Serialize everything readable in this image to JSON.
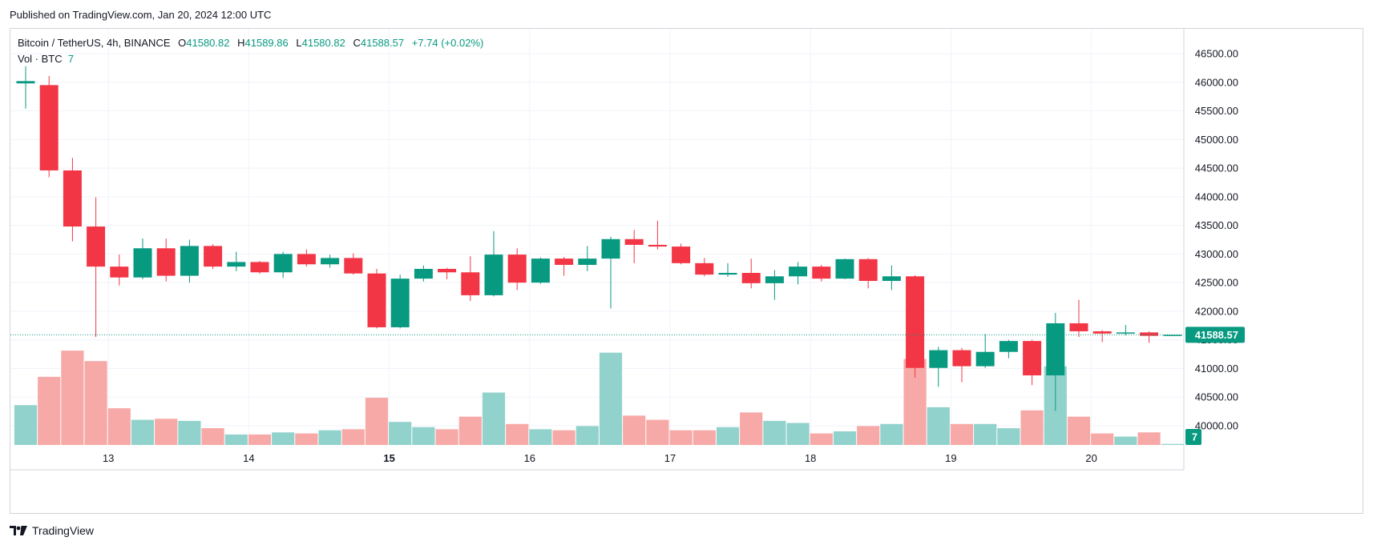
{
  "header": {
    "published": "Published on TradingView.com, Jan 20, 2024 12:00 UTC"
  },
  "legend": {
    "symbol": "Bitcoin / TetherUS, 4h, BINANCE",
    "o_label": "O",
    "o_value": "41580.82",
    "h_label": "H",
    "h_value": "41589.86",
    "l_label": "L",
    "l_value": "41580.82",
    "c_label": "C",
    "c_value": "41588.57",
    "change": "+7.74 (+0.02%)"
  },
  "volume_legend": {
    "label": "Vol · BTC",
    "value": "7"
  },
  "footer": {
    "brand": "TradingView"
  },
  "colors": {
    "up": "#089981",
    "down": "#f23645",
    "up_volume": "#92d2cc",
    "down_volume": "#f7a9a7",
    "grid": "#f0f3fa",
    "axis_text": "#131722"
  },
  "chart_data": {
    "type": "candlestick",
    "interval": "4h",
    "y_axis": {
      "range": [
        39800,
        46750
      ],
      "ticks": [
        "46500.00",
        "46000.00",
        "45500.00",
        "45000.00",
        "44500.00",
        "44000.00",
        "43500.00",
        "43000.00",
        "42500.00",
        "42000.00",
        "41500.00",
        "41000.00",
        "40500.00",
        "40000.00"
      ],
      "last_price_label": "41588.57",
      "volume_label": "7"
    },
    "x_axis": {
      "ticks": [
        "13",
        "14",
        "15",
        "16",
        "17",
        "18",
        "19",
        "20"
      ],
      "bold_ticks": [
        "15"
      ]
    },
    "candles": [
      {
        "o": 45980,
        "h": 46280,
        "l": 45540,
        "c": 46020,
        "v": 0.38
      },
      {
        "o": 45950,
        "h": 46110,
        "l": 44340,
        "c": 44460,
        "v": 0.65
      },
      {
        "o": 44460,
        "h": 44680,
        "l": 43220,
        "c": 43480,
        "v": 0.9
      },
      {
        "o": 43480,
        "h": 43990,
        "l": 41550,
        "c": 42780,
        "v": 0.8
      },
      {
        "o": 42780,
        "h": 42990,
        "l": 42450,
        "c": 42590,
        "v": 0.35
      },
      {
        "o": 42590,
        "h": 43270,
        "l": 42560,
        "c": 43100,
        "v": 0.24
      },
      {
        "o": 43100,
        "h": 43270,
        "l": 42520,
        "c": 42620,
        "v": 0.25
      },
      {
        "o": 42620,
        "h": 43250,
        "l": 42500,
        "c": 43140,
        "v": 0.23
      },
      {
        "o": 43140,
        "h": 43170,
        "l": 42740,
        "c": 42780,
        "v": 0.16
      },
      {
        "o": 42780,
        "h": 43040,
        "l": 42700,
        "c": 42860,
        "v": 0.1
      },
      {
        "o": 42860,
        "h": 42880,
        "l": 42650,
        "c": 42680,
        "v": 0.1
      },
      {
        "o": 42680,
        "h": 43040,
        "l": 42580,
        "c": 43000,
        "v": 0.12
      },
      {
        "o": 43000,
        "h": 43080,
        "l": 42780,
        "c": 42820,
        "v": 0.11
      },
      {
        "o": 42820,
        "h": 42990,
        "l": 42760,
        "c": 42930,
        "v": 0.14
      },
      {
        "o": 42930,
        "h": 43010,
        "l": 42640,
        "c": 42660,
        "v": 0.15
      },
      {
        "o": 42660,
        "h": 42740,
        "l": 41700,
        "c": 41720,
        "v": 0.45
      },
      {
        "o": 41720,
        "h": 42640,
        "l": 41700,
        "c": 42570,
        "v": 0.22
      },
      {
        "o": 42570,
        "h": 42800,
        "l": 42520,
        "c": 42740,
        "v": 0.17
      },
      {
        "o": 42740,
        "h": 42760,
        "l": 42560,
        "c": 42680,
        "v": 0.15
      },
      {
        "o": 42680,
        "h": 42960,
        "l": 42180,
        "c": 42280,
        "v": 0.27
      },
      {
        "o": 42280,
        "h": 43400,
        "l": 42260,
        "c": 42990,
        "v": 0.5
      },
      {
        "o": 42990,
        "h": 43100,
        "l": 42370,
        "c": 42500,
        "v": 0.2
      },
      {
        "o": 42500,
        "h": 42940,
        "l": 42480,
        "c": 42920,
        "v": 0.15
      },
      {
        "o": 42920,
        "h": 42950,
        "l": 42620,
        "c": 42810,
        "v": 0.14
      },
      {
        "o": 42810,
        "h": 43140,
        "l": 42700,
        "c": 42920,
        "v": 0.18
      },
      {
        "o": 42920,
        "h": 43300,
        "l": 42050,
        "c": 43260,
        "v": 0.88
      },
      {
        "o": 43260,
        "h": 43420,
        "l": 42840,
        "c": 43160,
        "v": 0.28
      },
      {
        "o": 43160,
        "h": 43580,
        "l": 43080,
        "c": 43130,
        "v": 0.24
      },
      {
        "o": 43130,
        "h": 43180,
        "l": 42820,
        "c": 42840,
        "v": 0.14
      },
      {
        "o": 42840,
        "h": 42930,
        "l": 42610,
        "c": 42640,
        "v": 0.14
      },
      {
        "o": 42640,
        "h": 42840,
        "l": 42600,
        "c": 42670,
        "v": 0.17
      },
      {
        "o": 42670,
        "h": 42920,
        "l": 42400,
        "c": 42490,
        "v": 0.31
      },
      {
        "o": 42490,
        "h": 42720,
        "l": 42200,
        "c": 42610,
        "v": 0.23
      },
      {
        "o": 42610,
        "h": 42860,
        "l": 42470,
        "c": 42780,
        "v": 0.21
      },
      {
        "o": 42780,
        "h": 42810,
        "l": 42520,
        "c": 42570,
        "v": 0.11
      },
      {
        "o": 42570,
        "h": 42920,
        "l": 42560,
        "c": 42910,
        "v": 0.13
      },
      {
        "o": 42910,
        "h": 42930,
        "l": 42400,
        "c": 42530,
        "v": 0.18
      },
      {
        "o": 42530,
        "h": 42800,
        "l": 42370,
        "c": 42610,
        "v": 0.2
      },
      {
        "o": 42610,
        "h": 42630,
        "l": 40840,
        "c": 41010,
        "v": 0.82
      },
      {
        "o": 41010,
        "h": 41380,
        "l": 40680,
        "c": 41320,
        "v": 0.36
      },
      {
        "o": 41320,
        "h": 41360,
        "l": 40760,
        "c": 41040,
        "v": 0.2
      },
      {
        "o": 41040,
        "h": 41600,
        "l": 41010,
        "c": 41290,
        "v": 0.2
      },
      {
        "o": 41290,
        "h": 41500,
        "l": 41180,
        "c": 41480,
        "v": 0.16
      },
      {
        "o": 41480,
        "h": 41500,
        "l": 40710,
        "c": 40880,
        "v": 0.33
      },
      {
        "o": 40880,
        "h": 41970,
        "l": 40260,
        "c": 41790,
        "v": 0.75
      },
      {
        "o": 41790,
        "h": 42200,
        "l": 41550,
        "c": 41650,
        "v": 0.27
      },
      {
        "o": 41650,
        "h": 41670,
        "l": 41460,
        "c": 41610,
        "v": 0.11
      },
      {
        "o": 41610,
        "h": 41760,
        "l": 41580,
        "c": 41630,
        "v": 0.08
      },
      {
        "o": 41630,
        "h": 41650,
        "l": 41450,
        "c": 41570,
        "v": 0.12
      },
      {
        "o": 41580.82,
        "h": 41589.86,
        "l": 41580.82,
        "c": 41588.57,
        "v": 0.01
      }
    ]
  }
}
